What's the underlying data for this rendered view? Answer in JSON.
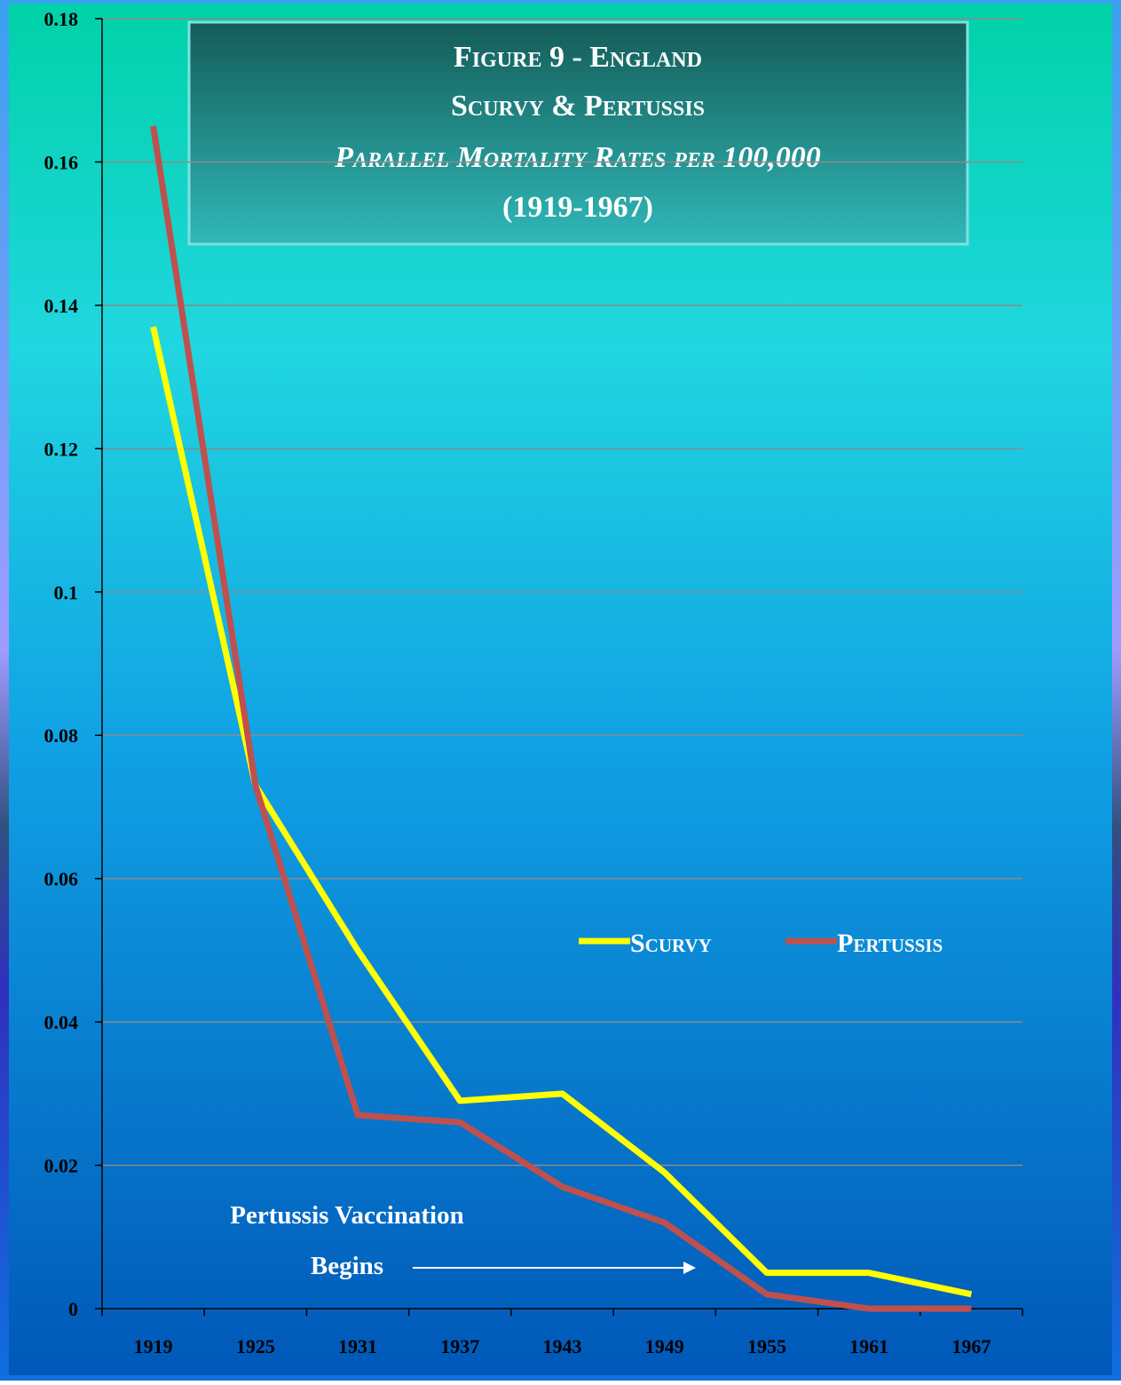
{
  "chart_data": {
    "type": "line",
    "title_lines": [
      "Figure 9 - England",
      "Scurvy & Pertussis"
    ],
    "subtitle": "Parallel Mortality Rates per 100,000",
    "period": "(1919-1967)",
    "categories": [
      "1919",
      "1925",
      "1931",
      "1937",
      "1943",
      "1949",
      "1955",
      "1961",
      "1967"
    ],
    "series": [
      {
        "name": "Scurvy",
        "color": "#ffff00",
        "values": [
          0.137,
          0.073,
          0.05,
          0.029,
          0.03,
          0.019,
          0.005,
          0.005,
          0.002
        ]
      },
      {
        "name": "Pertussis",
        "color": "#c0504d",
        "values": [
          0.165,
          0.073,
          0.027,
          0.026,
          0.017,
          0.012,
          0.002,
          0,
          0
        ]
      }
    ],
    "ylim": [
      0,
      0.18
    ],
    "yticks": [
      0,
      0.02,
      0.04,
      0.06,
      0.08,
      0.1,
      0.12,
      0.14,
      0.16,
      0.18
    ],
    "grid": true,
    "annotations": [
      "Pertussis Vaccination",
      "Begins"
    ]
  }
}
